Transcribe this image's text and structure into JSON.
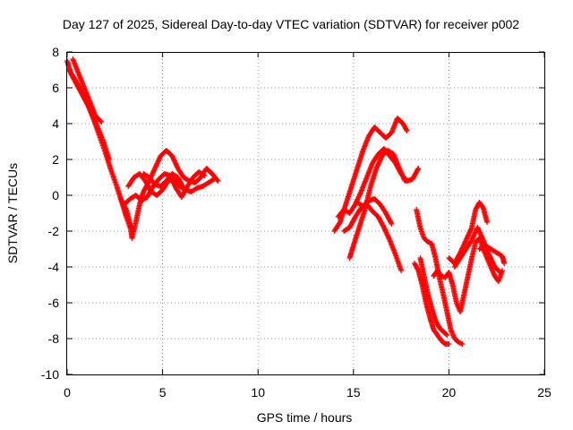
{
  "chart_data": {
    "type": "scatter",
    "title": "Day 127 of 2025, Sidereal Day-to-day VTEC variation (SDTVAR) for receiver p002",
    "xlabel": "GPS time / hours",
    "ylabel": "SDTVAR / TECUs",
    "xlim": [
      0,
      25
    ],
    "ylim": [
      -10,
      8
    ],
    "xticks": [
      "0",
      "5",
      "10",
      "15",
      "20",
      "25"
    ],
    "yticks": [
      "8",
      "6",
      "4",
      "2",
      "0",
      "-2",
      "-4",
      "-6",
      "-8",
      "-10"
    ],
    "grid": true,
    "marker": "+",
    "color": "#ff0000",
    "series": [
      {
        "tracks": [
          [
            [
              0.0,
              7.5
            ],
            [
              0.2,
              6.8
            ],
            [
              0.5,
              6.2
            ],
            [
              0.8,
              5.6
            ],
            [
              1.1,
              5.0
            ],
            [
              1.4,
              4.2
            ],
            [
              1.7,
              3.3
            ],
            [
              2.0,
              2.4
            ],
            [
              2.3,
              1.4
            ],
            [
              2.6,
              0.5
            ],
            [
              2.9,
              -0.5
            ],
            [
              3.1,
              -1.2
            ],
            [
              3.3,
              -1.8
            ]
          ],
          [
            [
              0.3,
              7.6
            ],
            [
              0.6,
              6.8
            ],
            [
              0.9,
              6.0
            ],
            [
              1.2,
              5.2
            ],
            [
              1.5,
              4.4
            ],
            [
              1.8,
              4.1
            ]
          ],
          [
            [
              0.1,
              7.0
            ],
            [
              0.4,
              6.5
            ],
            [
              0.7,
              5.9
            ],
            [
              1.0,
              5.3
            ],
            [
              1.3,
              4.6
            ],
            [
              1.6,
              3.8
            ],
            [
              1.9,
              3.0
            ],
            [
              2.2,
              2.0
            ]
          ],
          [
            [
              2.8,
              -0.2
            ],
            [
              3.1,
              -0.8
            ],
            [
              3.3,
              -1.6
            ],
            [
              3.4,
              -2.4
            ],
            [
              3.6,
              -1.5
            ],
            [
              3.8,
              -0.5
            ],
            [
              4.0,
              0.2
            ],
            [
              4.3,
              0.8
            ],
            [
              4.6,
              1.5
            ],
            [
              4.9,
              2.2
            ],
            [
              5.2,
              2.5
            ],
            [
              5.5,
              2.2
            ],
            [
              5.8,
              1.5
            ],
            [
              6.1,
              1.0
            ],
            [
              6.4,
              0.8
            ],
            [
              6.7,
              0.7
            ],
            [
              7.0,
              1.0
            ],
            [
              7.3,
              1.5
            ],
            [
              7.6,
              1.2
            ],
            [
              7.9,
              0.8
            ]
          ],
          [
            [
              3.2,
              0.5
            ],
            [
              3.5,
              1.0
            ],
            [
              3.8,
              1.2
            ],
            [
              4.1,
              0.8
            ],
            [
              4.4,
              0.2
            ],
            [
              4.7,
              0.0
            ],
            [
              5.0,
              0.3
            ],
            [
              5.3,
              0.8
            ],
            [
              5.6,
              0.9
            ],
            [
              5.9,
              0.5
            ],
            [
              6.2,
              0.3
            ],
            [
              6.5,
              0.2
            ],
            [
              6.8,
              0.4
            ],
            [
              7.1,
              0.5
            ],
            [
              7.4,
              0.7
            ],
            [
              7.7,
              0.9
            ]
          ],
          [
            [
              3.0,
              -0.5
            ],
            [
              3.3,
              -0.2
            ],
            [
              3.6,
              0.0
            ],
            [
              3.9,
              -0.3
            ],
            [
              4.2,
              -0.1
            ],
            [
              4.5,
              0.5
            ],
            [
              4.8,
              0.9
            ],
            [
              5.1,
              1.2
            ],
            [
              5.4,
              1.1
            ],
            [
              5.7,
              0.4
            ],
            [
              6.0,
              -0.1
            ],
            [
              6.3,
              0.5
            ],
            [
              6.6,
              1.0
            ],
            [
              6.9,
              1.3
            ],
            [
              7.2,
              1.1
            ]
          ],
          [
            [
              4.0,
              1.2
            ],
            [
              4.3,
              1.0
            ],
            [
              4.6,
              0.6
            ],
            [
              4.9,
              0.5
            ],
            [
              5.2,
              0.8
            ],
            [
              5.5,
              1.2
            ],
            [
              5.8,
              1.0
            ],
            [
              6.1,
              0.4
            ]
          ],
          [
            [
              14.0,
              -2.0
            ],
            [
              14.3,
              -1.5
            ],
            [
              14.6,
              -0.5
            ],
            [
              14.9,
              0.5
            ],
            [
              15.2,
              1.5
            ],
            [
              15.5,
              2.5
            ],
            [
              15.8,
              3.3
            ],
            [
              16.1,
              3.8
            ],
            [
              16.4,
              3.5
            ],
            [
              16.7,
              3.2
            ],
            [
              17.0,
              3.5
            ],
            [
              17.3,
              4.3
            ],
            [
              17.6,
              4.0
            ],
            [
              17.8,
              3.6
            ]
          ],
          [
            [
              14.2,
              -1.2
            ],
            [
              14.5,
              -0.8
            ],
            [
              14.8,
              -1.0
            ],
            [
              15.1,
              -0.5
            ],
            [
              15.4,
              0.2
            ],
            [
              15.7,
              1.0
            ],
            [
              16.0,
              1.8
            ],
            [
              16.3,
              2.3
            ],
            [
              16.6,
              2.6
            ],
            [
              16.9,
              2.2
            ],
            [
              17.2,
              1.8
            ],
            [
              17.5,
              1.2
            ],
            [
              17.8,
              0.8
            ],
            [
              18.1,
              0.9
            ],
            [
              18.4,
              1.5
            ]
          ],
          [
            [
              14.8,
              -3.5
            ],
            [
              15.0,
              -2.8
            ],
            [
              15.3,
              -1.8
            ],
            [
              15.6,
              -0.8
            ],
            [
              15.9,
              0.5
            ],
            [
              16.2,
              1.5
            ],
            [
              16.5,
              2.2
            ],
            [
              16.8,
              2.5
            ],
            [
              17.1,
              2.3
            ],
            [
              17.4,
              1.5
            ],
            [
              17.7,
              0.8
            ]
          ],
          [
            [
              14.5,
              -2.0
            ],
            [
              14.8,
              -1.8
            ],
            [
              15.1,
              -1.2
            ],
            [
              15.4,
              -0.7
            ],
            [
              15.7,
              -0.5
            ],
            [
              16.0,
              -0.9
            ],
            [
              16.3,
              -1.2
            ],
            [
              16.6,
              -1.8
            ],
            [
              16.9,
              -2.5
            ],
            [
              17.2,
              -3.3
            ],
            [
              17.5,
              -4.2
            ]
          ],
          [
            [
              15.2,
              -0.4
            ],
            [
              15.5,
              -0.6
            ],
            [
              15.8,
              -0.3
            ],
            [
              16.1,
              -0.2
            ],
            [
              16.4,
              -0.5
            ],
            [
              16.7,
              -1.0
            ],
            [
              17.0,
              -1.6
            ]
          ],
          [
            [
              18.3,
              -0.8
            ],
            [
              18.5,
              -1.8
            ],
            [
              18.7,
              -2.4
            ],
            [
              18.9,
              -2.6
            ],
            [
              19.1,
              -2.7
            ],
            [
              19.3,
              -3.5
            ],
            [
              19.5,
              -4.6
            ],
            [
              19.7,
              -5.5
            ],
            [
              19.9,
              -6.5
            ],
            [
              20.1,
              -7.5
            ],
            [
              20.3,
              -8.0
            ],
            [
              20.5,
              -8.2
            ],
            [
              20.7,
              -8.3
            ]
          ],
          [
            [
              18.2,
              -3.8
            ],
            [
              18.4,
              -4.2
            ],
            [
              18.6,
              -5.0
            ],
            [
              18.8,
              -6.0
            ],
            [
              19.0,
              -6.8
            ],
            [
              19.2,
              -7.5
            ],
            [
              19.4,
              -7.8
            ],
            [
              19.6,
              -8.1
            ],
            [
              19.8,
              -8.3
            ],
            [
              20.0,
              -8.3
            ]
          ],
          [
            [
              18.5,
              -3.5
            ],
            [
              18.7,
              -4.5
            ],
            [
              18.9,
              -5.5
            ],
            [
              19.1,
              -6.3
            ],
            [
              19.3,
              -7.0
            ],
            [
              19.5,
              -7.4
            ],
            [
              19.7,
              -7.6
            ],
            [
              19.9,
              -7.8
            ]
          ],
          [
            [
              19.2,
              -4.5
            ],
            [
              19.4,
              -4.2
            ],
            [
              19.6,
              -4.5
            ],
            [
              19.8,
              -4.6
            ],
            [
              20.0,
              -4.3
            ],
            [
              20.2,
              -5.0
            ],
            [
              20.4,
              -6.0
            ],
            [
              20.6,
              -6.5
            ],
            [
              20.8,
              -5.5
            ],
            [
              21.0,
              -4.5
            ],
            [
              21.2,
              -3.5
            ],
            [
              21.4,
              -2.6
            ],
            [
              21.6,
              -2.4
            ],
            [
              21.8,
              -3.0
            ],
            [
              22.0,
              -3.5
            ],
            [
              22.2,
              -4.0
            ],
            [
              22.4,
              -4.5
            ],
            [
              22.6,
              -4.8
            ],
            [
              22.8,
              -4.2
            ]
          ],
          [
            [
              20.3,
              -4.0
            ],
            [
              20.6,
              -3.5
            ],
            [
              20.9,
              -3.0
            ],
            [
              21.2,
              -2.5
            ],
            [
              21.5,
              -1.8
            ],
            [
              21.8,
              -2.5
            ],
            [
              22.1,
              -3.3
            ],
            [
              22.4,
              -4.0
            ],
            [
              22.7,
              -4.3
            ]
          ],
          [
            [
              20.0,
              -3.5
            ],
            [
              20.3,
              -3.8
            ],
            [
              20.6,
              -3.2
            ],
            [
              20.9,
              -2.5
            ],
            [
              21.2,
              -1.8
            ],
            [
              21.4,
              -0.8
            ],
            [
              21.6,
              -0.4
            ],
            [
              21.8,
              -0.7
            ],
            [
              22.0,
              -1.5
            ]
          ],
          [
            [
              21.6,
              -3.0
            ],
            [
              21.9,
              -2.8
            ],
            [
              22.2,
              -3.0
            ],
            [
              22.5,
              -3.2
            ],
            [
              22.8,
              -3.4
            ],
            [
              22.9,
              -3.8
            ]
          ]
        ]
      }
    ]
  }
}
